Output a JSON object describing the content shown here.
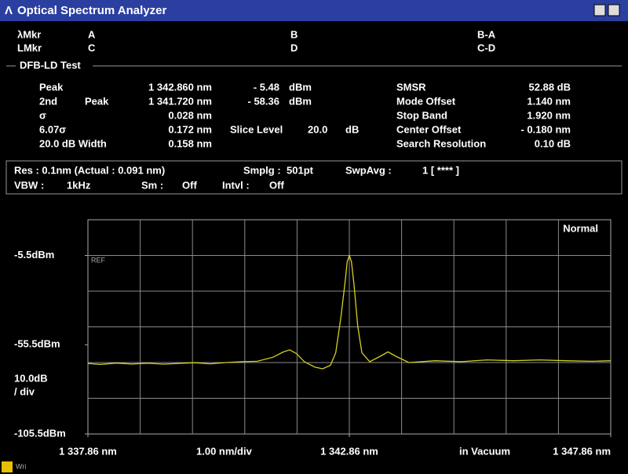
{
  "window": {
    "title": "Optical Spectrum Analyzer"
  },
  "markers": {
    "rows": [
      [
        "λMkr",
        "A",
        "B",
        "B-A"
      ],
      [
        "LMkr",
        "C",
        "D",
        "C-D"
      ]
    ]
  },
  "test": {
    "title": "DFB-LD Test",
    "left": [
      [
        "Peak",
        "1 342.860 nm",
        "- 5.48",
        "dBm"
      ],
      [
        "2nd",
        "Peak",
        "1 341.720 nm",
        "- 58.36",
        "dBm"
      ],
      [
        "σ",
        "0.028 nm"
      ],
      [
        "6.07σ",
        "0.172 nm"
      ],
      [
        "20.0 dB Width",
        "0.158 nm"
      ]
    ],
    "slice": [
      "Slice Level",
      "20.0",
      "dB"
    ],
    "right": [
      [
        "SMSR",
        "52.88 dB"
      ],
      [
        "Mode Offset",
        "1.140 nm"
      ],
      [
        "Stop Band",
        "1.920 nm"
      ],
      [
        "Center Offset",
        "- 0.180 nm"
      ],
      [
        "Search Resolution",
        "0.10  dB"
      ]
    ]
  },
  "settings": {
    "rows": [
      [
        "Res : 0.1nm  (Actual : 0.091 nm)",
        "Smplg :",
        "501pt",
        "SwpAvg :",
        "1 [    **** ]"
      ],
      [
        "VBW :",
        "1kHz",
        "Sm :",
        "Off",
        "Intvl :",
        "Off"
      ]
    ]
  },
  "chart_data": {
    "type": "line",
    "mode_label": "Normal",
    "ref_marker": "REF",
    "scale_label": [
      "10.0dB",
      "/ div"
    ],
    "span_label": "1.00 nm/div",
    "medium_label": "in Vacuum",
    "xlim": [
      1337.86,
      1347.86
    ],
    "xticks": [
      {
        "value": 1337.86,
        "label": "1 337.86 nm"
      },
      {
        "value": 1342.86,
        "label": "1 342.86 nm"
      },
      {
        "value": 1347.86,
        "label": "1 347.86 nm"
      }
    ],
    "ylim": [
      -105.5,
      14.5
    ],
    "yticks": [
      {
        "value": -5.5,
        "label": "-5.5dBm"
      },
      {
        "value": -55.5,
        "label": "-55.5dBm"
      },
      {
        "value": -105.5,
        "label": "-105.5dBm"
      }
    ],
    "series": [
      {
        "name": "Trace",
        "color": "#d8d020",
        "x": [
          1337.86,
          1338.1,
          1338.4,
          1338.7,
          1339.0,
          1339.3,
          1339.6,
          1339.9,
          1340.2,
          1340.5,
          1340.8,
          1341.1,
          1341.4,
          1341.6,
          1341.72,
          1341.85,
          1342.0,
          1342.2,
          1342.35,
          1342.5,
          1342.6,
          1342.7,
          1342.78,
          1342.82,
          1342.86,
          1342.9,
          1342.95,
          1343.02,
          1343.1,
          1343.25,
          1343.45,
          1343.6,
          1343.75,
          1344.0,
          1344.5,
          1345.0,
          1345.5,
          1346.0,
          1346.5,
          1347.0,
          1347.5,
          1347.86
        ],
        "values": [
          -66,
          -66.5,
          -65.8,
          -66.3,
          -65.9,
          -66.4,
          -66,
          -65.6,
          -66.2,
          -65.5,
          -65,
          -64.8,
          -62.5,
          -59.5,
          -58.36,
          -60.5,
          -65,
          -68,
          -69,
          -67,
          -60,
          -40,
          -20,
          -9,
          -5.48,
          -9,
          -22,
          -45,
          -60,
          -65,
          -62,
          -59.5,
          -62,
          -65.5,
          -64.5,
          -65,
          -64,
          -64.5,
          -64,
          -64.5,
          -64.8,
          -64.5
        ]
      }
    ]
  },
  "footer": {
    "label": "Wri"
  }
}
